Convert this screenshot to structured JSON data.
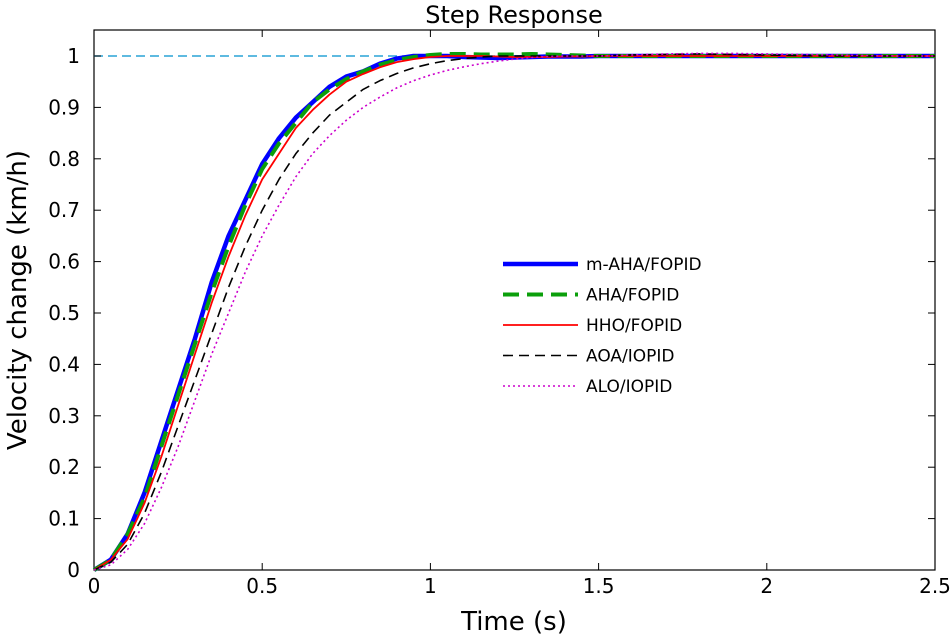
{
  "chart_data": {
    "type": "line",
    "title": "Step Response",
    "xlabel": "Time (s)",
    "ylabel": "Velocity change (km/h)",
    "xlim": [
      0,
      2.5
    ],
    "ylim": [
      0,
      1.05
    ],
    "x_ticks": [
      0,
      0.5,
      1,
      1.5,
      2,
      2.5
    ],
    "x_tick_labels": [
      "0",
      "0.5",
      "1",
      "1.5",
      "2",
      "2.5"
    ],
    "y_ticks": [
      0,
      0.1,
      0.2,
      0.3,
      0.4,
      0.5,
      0.6,
      0.7,
      0.8,
      0.9,
      1
    ],
    "y_tick_labels": [
      "0",
      "0.1",
      "0.2",
      "0.3",
      "0.4",
      "0.5",
      "0.6",
      "0.7",
      "0.8",
      "0.9",
      "1"
    ],
    "grid": false,
    "legend_position": "center-right",
    "reference_line": {
      "y": 1,
      "color": "#29a3d6",
      "style": "dashed"
    },
    "x": [
      0,
      0.05,
      0.1,
      0.15,
      0.2,
      0.25,
      0.3,
      0.35,
      0.4,
      0.45,
      0.5,
      0.55,
      0.6,
      0.65,
      0.7,
      0.75,
      0.8,
      0.85,
      0.9,
      0.95,
      1.0,
      1.05,
      1.1,
      1.15,
      1.2,
      1.25,
      1.3,
      1.35,
      1.4,
      1.45,
      1.5,
      1.6,
      1.7,
      1.8,
      1.9,
      2.0,
      2.1,
      2.2,
      2.3,
      2.4,
      2.5
    ],
    "series": [
      {
        "name": "m-AHA/FOPID",
        "color": "#0000ff",
        "style": "solid-thick",
        "values": [
          0,
          0.02,
          0.07,
          0.15,
          0.25,
          0.35,
          0.45,
          0.56,
          0.65,
          0.72,
          0.79,
          0.84,
          0.88,
          0.91,
          0.94,
          0.96,
          0.97,
          0.985,
          0.995,
          1.0,
          1.0,
          1.0,
          0.998,
          0.997,
          0.996,
          0.997,
          0.998,
          0.999,
          0.999,
          0.999,
          1.0,
          1.0,
          1.0,
          1.0,
          1.0,
          1.0,
          1.0,
          1.0,
          1.0,
          1.0,
          1.0
        ]
      },
      {
        "name": "AHA/FOPID",
        "color": "#0b9f0b",
        "style": "dashed-thick",
        "values": [
          0,
          0.02,
          0.07,
          0.14,
          0.24,
          0.34,
          0.44,
          0.54,
          0.63,
          0.71,
          0.78,
          0.83,
          0.87,
          0.91,
          0.935,
          0.955,
          0.97,
          0.983,
          0.992,
          0.998,
          1.002,
          1.004,
          1.004,
          1.003,
          1.003,
          1.003,
          1.004,
          1.003,
          1.002,
          1.001,
          1.0,
          1.0,
          1.0,
          1.0,
          1.0,
          1.0,
          1.0,
          1.0,
          1.0,
          1.0,
          1.0
        ]
      },
      {
        "name": "HHO/FOPID",
        "color": "#ff0000",
        "style": "solid",
        "values": [
          0,
          0.02,
          0.06,
          0.13,
          0.22,
          0.32,
          0.42,
          0.52,
          0.61,
          0.69,
          0.76,
          0.81,
          0.86,
          0.895,
          0.925,
          0.95,
          0.965,
          0.978,
          0.988,
          0.994,
          0.998,
          1.0,
          1.0,
          1.0,
          0.999,
          0.998,
          0.998,
          0.998,
          0.999,
          0.999,
          1.0,
          1.0,
          1.0,
          1.0,
          1.0,
          1.0,
          1.0,
          1.0,
          1.0,
          1.0,
          1.0
        ]
      },
      {
        "name": "AOA/IOPID",
        "color": "#000000",
        "style": "dashed",
        "values": [
          0,
          0.015,
          0.05,
          0.11,
          0.19,
          0.28,
          0.37,
          0.46,
          0.55,
          0.63,
          0.7,
          0.76,
          0.81,
          0.85,
          0.885,
          0.91,
          0.935,
          0.952,
          0.966,
          0.977,
          0.985,
          0.991,
          0.995,
          0.998,
          1.0,
          1.0,
          1.0,
          1.0,
          1.0,
          1.0,
          1.0,
          1.002,
          1.003,
          1.004,
          1.003,
          1.002,
          1.001,
          1.0,
          1.0,
          1.0,
          1.0
        ]
      },
      {
        "name": "ALO/IOPID",
        "color": "#cc00cc",
        "style": "dotted",
        "values": [
          0,
          0.01,
          0.04,
          0.09,
          0.16,
          0.24,
          0.33,
          0.42,
          0.5,
          0.58,
          0.65,
          0.71,
          0.765,
          0.81,
          0.845,
          0.875,
          0.9,
          0.92,
          0.938,
          0.952,
          0.963,
          0.972,
          0.979,
          0.985,
          0.99,
          0.994,
          0.997,
          0.999,
          1.0,
          1.0,
          1.0,
          1.002,
          1.004,
          1.005,
          1.005,
          1.004,
          1.003,
          1.002,
          1.001,
          1.0,
          1.0
        ]
      }
    ]
  }
}
